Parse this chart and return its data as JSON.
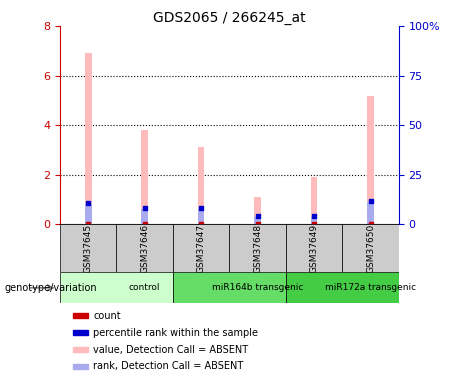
{
  "title": "GDS2065 / 266245_at",
  "samples": [
    "GSM37645",
    "GSM37646",
    "GSM37647",
    "GSM37648",
    "GSM37649",
    "GSM37650"
  ],
  "pink_values": [
    6.9,
    3.8,
    3.1,
    1.1,
    1.9,
    5.2
  ],
  "blue_values": [
    0.8,
    0.6,
    0.6,
    0.3,
    0.3,
    0.9
  ],
  "ylim_left": [
    0,
    8
  ],
  "ylim_right": [
    0,
    100
  ],
  "yticks_left": [
    0,
    2,
    4,
    6,
    8
  ],
  "yticks_right": [
    0,
    25,
    50,
    75,
    100
  ],
  "yticklabels_right": [
    "0",
    "25",
    "50",
    "75",
    "100%"
  ],
  "groups": [
    {
      "label": "control",
      "span": [
        0,
        2
      ],
      "color": "#ccffcc"
    },
    {
      "label": "miR164b transgenic",
      "span": [
        2,
        4
      ],
      "color": "#66dd66"
    },
    {
      "label": "miR172a transgenic",
      "span": [
        4,
        6
      ],
      "color": "#44cc44"
    }
  ],
  "bar_width": 0.12,
  "pink_color": "#ffbbbb",
  "blue_color": "#aaaaee",
  "red_marker_color": "#cc0000",
  "blue_marker_color": "#0000cc",
  "legend_items": [
    {
      "color": "#cc0000",
      "label": "count"
    },
    {
      "color": "#0000cc",
      "label": "percentile rank within the sample"
    },
    {
      "color": "#ffbbbb",
      "label": "value, Detection Call = ABSENT"
    },
    {
      "color": "#aaaaee",
      "label": "rank, Detection Call = ABSENT"
    }
  ],
  "left_axis_color": "#cc0000",
  "right_axis_color": "#0000cc",
  "grid_color": "black",
  "bg_color": "#ffffff",
  "sample_box_color": "#cccccc",
  "genotype_label": "genotype/variation"
}
